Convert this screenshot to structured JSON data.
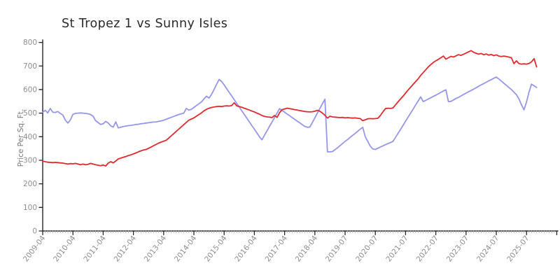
{
  "chart_data": {
    "type": "line",
    "title": "St Tropez 1 vs Sunny Isles",
    "xlabel": "",
    "ylabel": "Price Per Sq. Ft.",
    "ylim": [
      0,
      800
    ],
    "yticks": [
      0,
      100,
      200,
      300,
      400,
      500,
      600,
      700,
      800
    ],
    "grid": false,
    "legend": "none",
    "style": "hand-drawn-sketch",
    "x_unit": "month",
    "xtick_every_n_points": 12,
    "xtick_labels": [
      "2009-04",
      "2010-04",
      "2011-04",
      "2012-04",
      "2013-04",
      "2014-04",
      "2015-04",
      "2016-04",
      "2017-04",
      "2018-04",
      "2019-07",
      "2020-07",
      "2021-07",
      "2022-07",
      "2023-07",
      "2024-07",
      "2025-07"
    ],
    "colors": {
      "axis": "#262626",
      "minor_tick": "#b0b0b0",
      "tick_labels": "#8e8e8e",
      "title": "#2b2b2b"
    },
    "series": [
      {
        "name": "St Tropez 1",
        "color": "#9696eb",
        "values": [
          503,
          512,
          501,
          520,
          504,
          503,
          507,
          499,
          492,
          470,
          458,
          472,
          495,
          499,
          500,
          501,
          500,
          499,
          497,
          494,
          487,
          468,
          460,
          452,
          455,
          465,
          458,
          446,
          441,
          463,
          437,
          440,
          443,
          445,
          447,
          448,
          450,
          452,
          453,
          455,
          456,
          458,
          459,
          461,
          462,
          463,
          465,
          467,
          470,
          474,
          478,
          482,
          486,
          490,
          494,
          497,
          500,
          520,
          513,
          516,
          524,
          532,
          540,
          548,
          560,
          572,
          564,
          580,
          600,
          622,
          643,
          634,
          620,
          604,
          588,
          573,
          557,
          541,
          526,
          510,
          494,
          479,
          463,
          447,
          432,
          416,
          400,
          387,
          406,
          425,
          444,
          462,
          481,
          500,
          519,
          511,
          504,
          496,
          489,
          481,
          474,
          466,
          459,
          451,
          444,
          440,
          441,
          460,
          480,
          500,
          520,
          540,
          559,
          336,
          336,
          337,
          345,
          353,
          362,
          371,
          380,
          388,
          397,
          406,
          414,
          423,
          432,
          440,
          400,
          380,
          360,
          348,
          346,
          351,
          356,
          361,
          366,
          371,
          375,
          380,
          397,
          414,
          431,
          448,
          466,
          483,
          500,
          517,
          535,
          552,
          569,
          549,
          554,
          560,
          565,
          571,
          576,
          582,
          588,
          594,
          599,
          549,
          550,
          556,
          562,
          567,
          573,
          579,
          585,
          591,
          596,
          602,
          608,
          614,
          620,
          625,
          631,
          637,
          642,
          648,
          653,
          645,
          636,
          627,
          618,
          609,
          600,
          589,
          578,
          560,
          535,
          514,
          548,
          590,
          623,
          616,
          609
        ]
      },
      {
        "name": "Sunny Isles",
        "color": "#e22a2e",
        "values": [
          296,
          294,
          292,
          291,
          290,
          291,
          290,
          289,
          288,
          286,
          284,
          286,
          285,
          287,
          284,
          281,
          284,
          281,
          283,
          287,
          284,
          281,
          279,
          277,
          280,
          276,
          288,
          294,
          289,
          297,
          306,
          309,
          313,
          316,
          320,
          323,
          327,
          331,
          336,
          340,
          344,
          346,
          351,
          356,
          362,
          367,
          373,
          377,
          381,
          385,
          394,
          404,
          413,
          423,
          432,
          442,
          451,
          461,
          470,
          475,
          480,
          487,
          494,
          501,
          510,
          516,
          521,
          524,
          526,
          528,
          529,
          528,
          530,
          531,
          530,
          532,
          544,
          531,
          528,
          525,
          521,
          517,
          513,
          509,
          505,
          500,
          496,
          490,
          486,
          484,
          483,
          481,
          490,
          482,
          502,
          515,
          518,
          521,
          519,
          517,
          515,
          513,
          511,
          509,
          507,
          506,
          505,
          506,
          508,
          512,
          508,
          500,
          491,
          479,
          487,
          484,
          483,
          482,
          481,
          482,
          480,
          481,
          480,
          479,
          480,
          478,
          477,
          468,
          472,
          476,
          477,
          476,
          477,
          478,
          490,
          505,
          519,
          521,
          520,
          522,
          535,
          548,
          560,
          572,
          585,
          598,
          610,
          622,
          634,
          646,
          660,
          672,
          684,
          696,
          706,
          715,
          722,
          728,
          735,
          742,
          729,
          735,
          741,
          738,
          743,
          748,
          745,
          750,
          755,
          760,
          765,
          758,
          754,
          750,
          753,
          748,
          751,
          746,
          749,
          744,
          747,
          742,
          740,
          742,
          740,
          738,
          735,
          710,
          722,
          710,
          708,
          709,
          708,
          711,
          718,
          731,
          696
        ]
      }
    ]
  }
}
